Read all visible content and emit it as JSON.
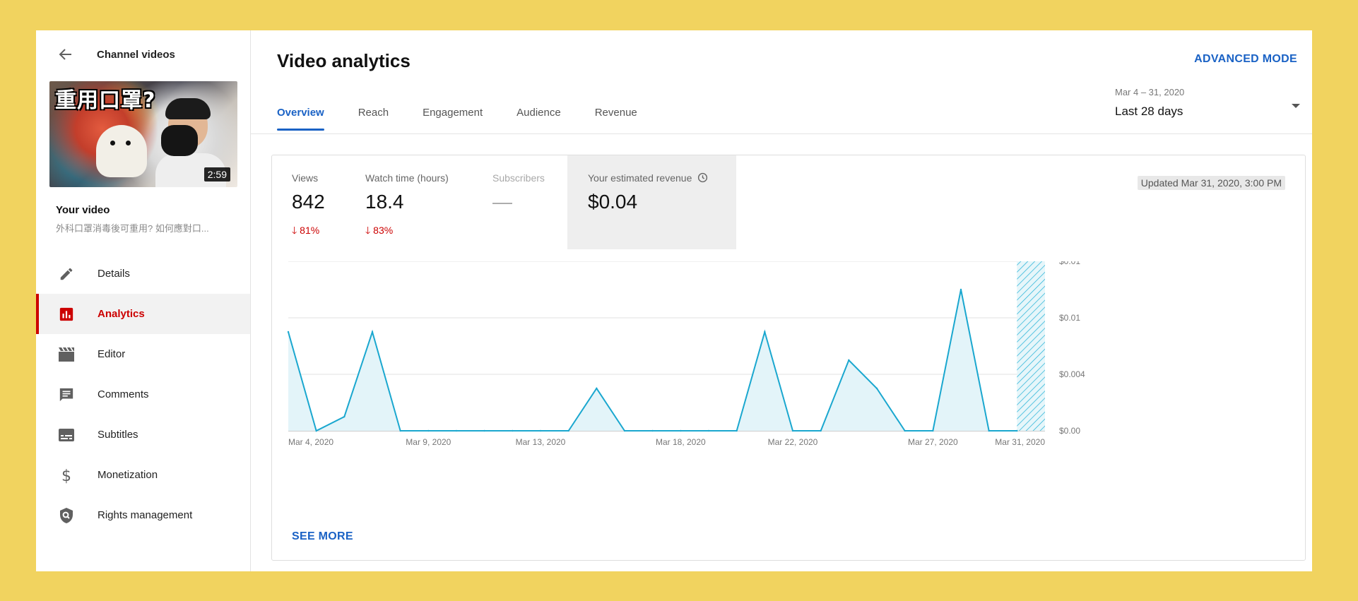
{
  "sidebar": {
    "back_label": "Channel videos",
    "thumbnail": {
      "title_text": "重用口罩?",
      "duration": "2:59"
    },
    "your_video_label": "Your video",
    "video_title": "外科口罩消毒後可重用? 如何應對口...",
    "items": [
      {
        "label": "Details",
        "icon": "pencil-icon",
        "active": false
      },
      {
        "label": "Analytics",
        "icon": "analytics-icon",
        "active": true
      },
      {
        "label": "Editor",
        "icon": "clapperboard-icon",
        "active": false
      },
      {
        "label": "Comments",
        "icon": "comment-icon",
        "active": false
      },
      {
        "label": "Subtitles",
        "icon": "subtitles-icon",
        "active": false
      },
      {
        "label": "Monetization",
        "icon": "dollar-icon",
        "active": false
      },
      {
        "label": "Rights management",
        "icon": "shield-icon",
        "active": false
      }
    ]
  },
  "header": {
    "title": "Video analytics",
    "advanced_mode": "ADVANCED MODE",
    "tabs": [
      "Overview",
      "Reach",
      "Engagement",
      "Audience",
      "Revenue"
    ],
    "active_tab": "Overview",
    "date_range": "Mar 4 – 31, 2020",
    "date_preset": "Last 28 days"
  },
  "metrics": [
    {
      "label": "Views",
      "value": "842",
      "change": "81%",
      "direction": "down"
    },
    {
      "label": "Watch time (hours)",
      "value": "18.4",
      "change": "83%",
      "direction": "down"
    },
    {
      "label": "Subscribers",
      "value": "—",
      "change": ""
    },
    {
      "label": "Your estimated revenue",
      "value": "$0.04",
      "change": ""
    }
  ],
  "updated": "Updated Mar 31, 2020, 3:00 PM",
  "see_more": "SEE MORE",
  "colors": {
    "accent": "#1a62c5",
    "active_red": "#cc0000",
    "line": "#1aa7cf",
    "fill": "#e3f4f9"
  },
  "chart_data": {
    "type": "area",
    "x": [
      "Mar 4",
      "Mar 5",
      "Mar 6",
      "Mar 7",
      "Mar 8",
      "Mar 9",
      "Mar 10",
      "Mar 11",
      "Mar 12",
      "Mar 13",
      "Mar 14",
      "Mar 15",
      "Mar 16",
      "Mar 17",
      "Mar 18",
      "Mar 19",
      "Mar 20",
      "Mar 21",
      "Mar 22",
      "Mar 23",
      "Mar 24",
      "Mar 25",
      "Mar 26",
      "Mar 27",
      "Mar 28",
      "Mar 29",
      "Mar 30",
      "Mar 31"
    ],
    "values": [
      0.007,
      0,
      0.001,
      0.007,
      0,
      0,
      0,
      0,
      0,
      0,
      0,
      0.003,
      0,
      0,
      0,
      0,
      0,
      0.007,
      0,
      0,
      0.005,
      0.003,
      0,
      0,
      0.01,
      0,
      0,
      null
    ],
    "xtick_labels": [
      "Mar 4, 2020",
      "Mar 9, 2020",
      "Mar 13, 2020",
      "Mar 18, 2020",
      "Mar 22, 2020",
      "Mar 27, 2020",
      "Mar 31, 2020"
    ],
    "xtick_index": [
      0,
      5,
      9,
      14,
      18,
      23,
      27
    ],
    "ytick_labels": [
      "$0.01",
      "$0.01",
      "$0.004",
      "$0.00"
    ],
    "ylim": [
      0,
      0.012
    ],
    "grid": true,
    "partial_last_period": true
  }
}
